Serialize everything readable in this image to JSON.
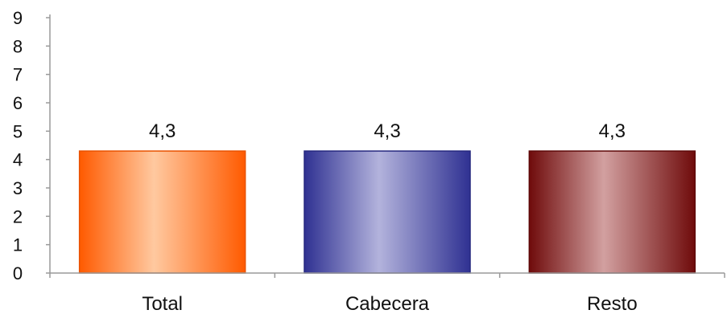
{
  "chart_data": {
    "type": "bar",
    "title": "",
    "xlabel": "",
    "ylabel": "",
    "categories": [
      "Total",
      "Cabecera",
      "Resto"
    ],
    "values": [
      4.3,
      4.3,
      4.3
    ],
    "data_labels": [
      "4,3",
      "4,3",
      "4,3"
    ],
    "ylim": [
      0,
      9
    ],
    "yticks": [
      0,
      1,
      2,
      3,
      4,
      5,
      6,
      7,
      8,
      9
    ],
    "grid": false,
    "bar_styles": [
      {
        "edge": "#ff5a00",
        "mid": "#ffc9a0",
        "stroke": "#e85200"
      },
      {
        "edge": "#2f3192",
        "mid": "#b3b3dc",
        "stroke": "#26287f"
      },
      {
        "edge": "#6f0b0b",
        "mid": "#d2a0a0",
        "stroke": "#5e0808"
      }
    ]
  }
}
